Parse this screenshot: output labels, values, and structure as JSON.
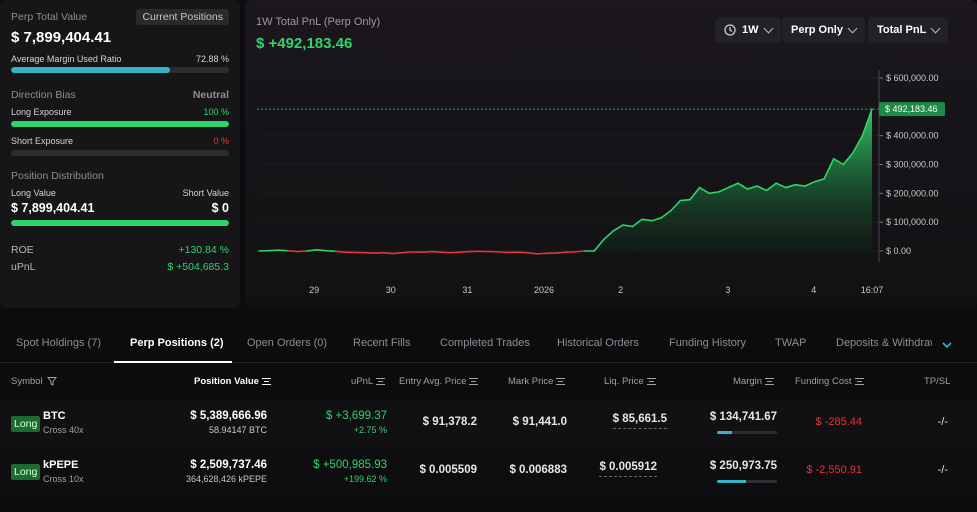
{
  "summary": {
    "perp_total_value_label": "Perp Total Value",
    "current_positions_button": "Current Positions",
    "perp_total_value": "$ 7,899,404.41",
    "avg_margin_label": "Average Margin Used Ratio",
    "avg_margin_value": "72.88 %",
    "avg_margin_fraction": 0.7288,
    "direction_bias_label": "Direction Bias",
    "direction_bias_value": "Neutral",
    "long_exposure_label": "Long Exposure",
    "long_exposure_value": "100 %",
    "long_exposure_fraction": 1.0,
    "short_exposure_label": "Short Exposure",
    "short_exposure_value": "0 %",
    "short_exposure_fraction": 0.0,
    "position_distribution_label": "Position Distribution",
    "long_value_label": "Long Value",
    "short_value_label": "Short Value",
    "long_value": "$ 7,899,404.41",
    "short_value": "$ 0",
    "distribution_long_fraction": 1.0,
    "roe_label": "ROE",
    "roe_value": "+130.84 %",
    "upnl_label": "uPnL",
    "upnl_value": "$ +504,685.3"
  },
  "chart_header": {
    "title": "1W Total PnL (Perp Only)",
    "value": "$ +492,183.46",
    "timeframe": "1W",
    "scope": "Perp Only",
    "metric": "Total PnL",
    "icons": {
      "timeframe": "clock-icon",
      "dropdown": "chevron-down-icon"
    }
  },
  "chart_data": {
    "type": "area",
    "title": "1W Total PnL (Perp Only)",
    "x_ticks": [
      "29",
      "30",
      "31",
      "2026",
      "2",
      "3",
      "4",
      "16:07"
    ],
    "y_ticks": [
      "$ 600,000.00",
      "$ 500,000.00",
      "$ 400,000.00",
      "$ 300,000.00",
      "$ 200,000.00",
      "$ 100,000.00",
      "$ 0.00"
    ],
    "ylim": [
      0,
      600000
    ],
    "current_value": 492183.46,
    "current_label": "$ 492,183.46",
    "colors": {
      "positive": "#2fd46a",
      "negative": "#e0373b"
    },
    "series": [
      {
        "values": [
          0,
          1000,
          3000,
          1000,
          -2000,
          0,
          4000,
          1000,
          -1000,
          -4000,
          -5000,
          -6000,
          -7000,
          -6000,
          -9000,
          -6000,
          -3000,
          -4000,
          -2000,
          -4000,
          -6000,
          -4000,
          -2000,
          -1000,
          -2000,
          -3000,
          -5000,
          -4000,
          -6000,
          -10000,
          -8000,
          -7000,
          -4000,
          -3000,
          0,
          0,
          40000,
          70000,
          90000,
          85000,
          110000,
          105000,
          115000,
          140000,
          175000,
          178000,
          220000,
          200000,
          205000,
          220000,
          235000,
          215000,
          225000,
          210000,
          235000,
          220000,
          230000,
          225000,
          240000,
          250000,
          320000,
          300000,
          340000,
          400000,
          492183
        ]
      }
    ]
  },
  "tabs": [
    "Spot Holdings (7)",
    "Perp Positions (2)",
    "Open Orders (0)",
    "Recent Fills",
    "Completed Trades",
    "Historical Orders",
    "Funding History",
    "TWAP",
    "Deposits & Withdraw"
  ],
  "active_tab": 1,
  "table": {
    "headers": {
      "symbol": "Symbol",
      "position_value": "Position Value",
      "upnl": "uPnL",
      "entry": "Entry Avg. Price",
      "mark": "Mark Price",
      "liq": "Liq. Price",
      "margin": "Margin",
      "funding": "Funding Cost",
      "tpsl": "TP/SL"
    },
    "rows": [
      {
        "side": "Long",
        "symbol": "BTC",
        "leverage": "Cross 40x",
        "position_value": "$ 5,389,666.96",
        "position_size": "58.94147 BTC",
        "upnl": "$ +3,699.37",
        "upnl_pct": "+2.75 %",
        "entry": "$ 91,378.2",
        "mark": "$ 91,441.0",
        "liq": "$ 85,661.5",
        "margin": "$ 134,741.67",
        "margin_fraction": 0.25,
        "funding": "$ -285.44",
        "tpsl": "-/-"
      },
      {
        "side": "Long",
        "symbol": "kPEPE",
        "leverage": "Cross 10x",
        "position_value": "$ 2,509,737.46",
        "position_size": "364,628,426 kPEPE",
        "upnl": "$ +500,985.93",
        "upnl_pct": "+199.62 %",
        "entry": "$ 0.005509",
        "mark": "$ 0.006883",
        "liq": "$ 0.005912",
        "margin": "$ 250,973.75",
        "margin_fraction": 0.48,
        "funding": "$ -2,550.91",
        "tpsl": "-/-"
      }
    ]
  }
}
